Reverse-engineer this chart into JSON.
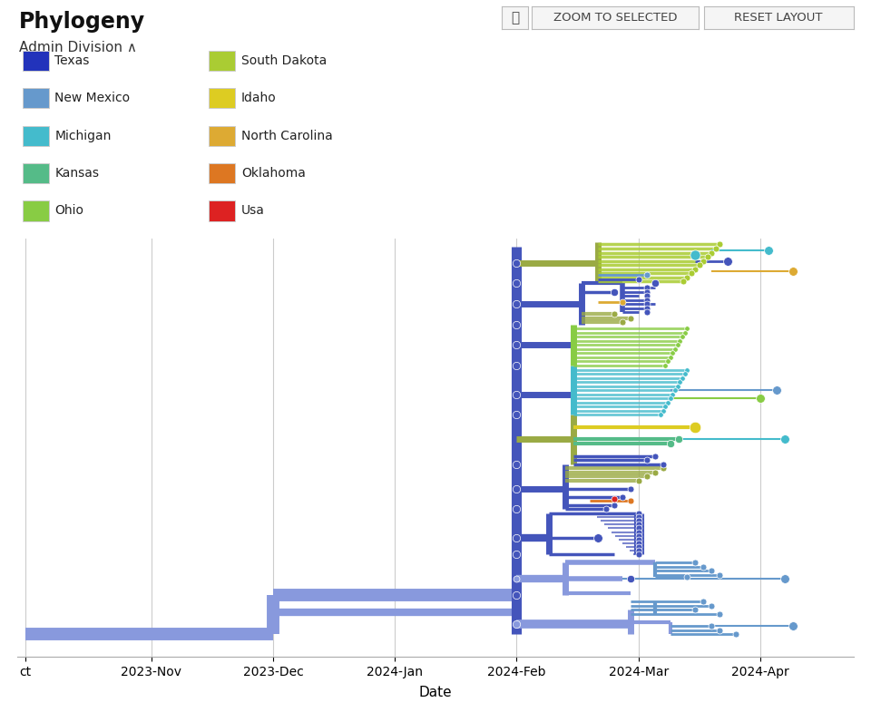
{
  "title": "Phylogeny",
  "subtitle": "Admin Division ∧",
  "xlabel": "Date",
  "background_color": "#ffffff",
  "legend_items": [
    {
      "label": "Texas",
      "color": "#2233bb"
    },
    {
      "label": "New Mexico",
      "color": "#6699cc"
    },
    {
      "label": "Michigan",
      "color": "#44bbcc"
    },
    {
      "label": "Kansas",
      "color": "#55bb88"
    },
    {
      "label": "Ohio",
      "color": "#88cc44"
    },
    {
      "label": "South Dakota",
      "color": "#aacc33"
    },
    {
      "label": "Idaho",
      "color": "#ddcc22"
    },
    {
      "label": "North Carolina",
      "color": "#ddaa33"
    },
    {
      "label": "Oklahoma",
      "color": "#dd7722"
    },
    {
      "label": "Usa",
      "color": "#dd2222"
    }
  ],
  "x_tick_labels": [
    "ct",
    "2023-Nov",
    "2023-Dec",
    "2024-Jan",
    "2024-Feb",
    "2024-Mar",
    "2024-Apr"
  ],
  "x_tick_vals": [
    0.0,
    0.155,
    0.305,
    0.455,
    0.605,
    0.755,
    0.905
  ],
  "grid_color": "#cccccc",
  "main_color": "#4455bb",
  "light_color": "#8899dd",
  "spine_color": "#5566cc"
}
